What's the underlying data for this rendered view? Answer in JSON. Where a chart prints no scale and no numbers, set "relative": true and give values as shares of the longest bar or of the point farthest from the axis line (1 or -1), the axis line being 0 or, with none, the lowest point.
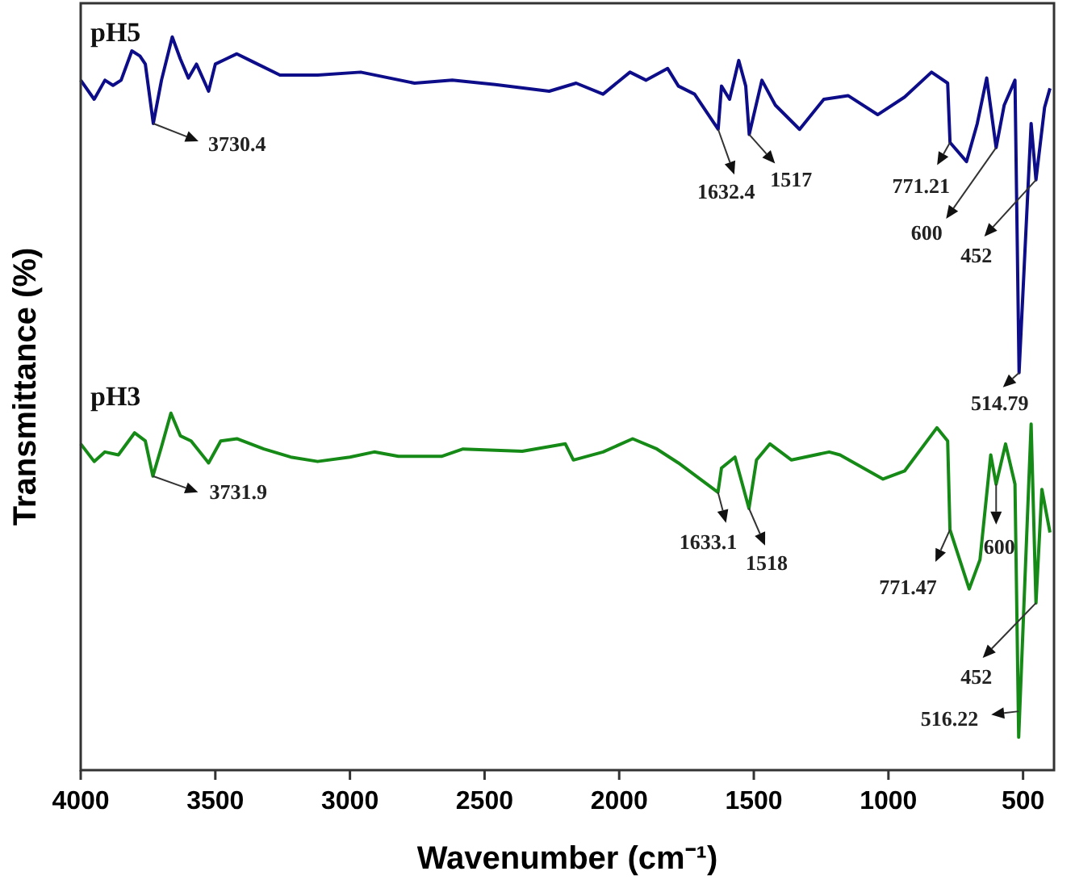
{
  "chart_data": {
    "type": "line",
    "xlabel": "Wavenumber (cm⁻¹)",
    "ylabel": "Transmittance (%)",
    "xlim": [
      4000,
      385
    ],
    "xticks": [
      4000,
      3500,
      3000,
      2500,
      2000,
      1500,
      1000,
      500
    ],
    "relative": true,
    "grid": false,
    "series": [
      {
        "name": "pH5",
        "color": "#0d0d8a",
        "x": [
          4000,
          3950,
          3910,
          3880,
          3850,
          3810,
          3780,
          3760,
          3730.4,
          3700,
          3660,
          3630,
          3600,
          3570,
          3525,
          3500,
          3460,
          3420,
          3360,
          3260,
          3120,
          2960,
          2760,
          2620,
          2460,
          2260,
          2160,
          2060,
          1960,
          1900,
          1820,
          1780,
          1720,
          1632.4,
          1620,
          1590,
          1556,
          1530,
          1517,
          1470,
          1420,
          1330,
          1240,
          1150,
          1040,
          940,
          840,
          780,
          771.21,
          710,
          670,
          635,
          600,
          570,
          530,
          514.79,
          470,
          452,
          420,
          400
        ],
        "values": [
          0.941,
          0.915,
          0.941,
          0.934,
          0.941,
          0.981,
          0.974,
          0.963,
          0.882,
          0.941,
          1,
          0.97,
          0.944,
          0.963,
          0.926,
          0.963,
          0.97,
          0.977,
          0.966,
          0.948,
          0.948,
          0.952,
          0.937,
          0.941,
          0.935,
          0.926,
          0.937,
          0.922,
          0.952,
          0.941,
          0.957,
          0.933,
          0.922,
          0.874,
          0.933,
          0.915,
          0.968,
          0.933,
          0.867,
          0.941,
          0.907,
          0.874,
          0.915,
          0.92,
          0.894,
          0.918,
          0.952,
          0.937,
          0.856,
          0.83,
          0.882,
          0.944,
          0.849,
          0.907,
          0.941,
          0.542,
          0.882,
          0.805,
          0.904,
          0.93
        ]
      },
      {
        "name": "pH3",
        "color": "#168a16",
        "x": [
          4000,
          3950,
          3910,
          3860,
          3800,
          3760,
          3731.9,
          3700,
          3665,
          3630,
          3590,
          3525,
          3480,
          3420,
          3320,
          3220,
          3120,
          3000,
          2910,
          2820,
          2660,
          2580,
          2360,
          2200,
          2170,
          2060,
          1950,
          1860,
          1780,
          1633.1,
          1620,
          1570,
          1518,
          1490,
          1440,
          1360,
          1220,
          1180,
          1020,
          940,
          820,
          780,
          771.47,
          700,
          660,
          620,
          600,
          565,
          530,
          516.22,
          470,
          452,
          430,
          400
        ],
        "values": [
          0.445,
          0.421,
          0.434,
          0.43,
          0.46,
          0.449,
          0.401,
          0.441,
          0.487,
          0.456,
          0.449,
          0.419,
          0.449,
          0.452,
          0.438,
          0.427,
          0.421,
          0.427,
          0.434,
          0.428,
          0.428,
          0.438,
          0.435,
          0.445,
          0.423,
          0.434,
          0.452,
          0.438,
          0.419,
          0.379,
          0.412,
          0.427,
          0.357,
          0.423,
          0.445,
          0.423,
          0.434,
          0.43,
          0.397,
          0.408,
          0.467,
          0.449,
          0.328,
          0.247,
          0.287,
          0.43,
          0.39,
          0.445,
          0.39,
          0.045,
          0.472,
          0.228,
          0.383,
          0.324
        ]
      }
    ],
    "annotations": [
      {
        "text": "3730.4",
        "x": 3730.4,
        "y": 0.882
      },
      {
        "text": "1632.4",
        "x": 1632.4,
        "y": 0.874
      },
      {
        "text": "1517",
        "x": 1517,
        "y": 0.867
      },
      {
        "text": "771.21",
        "x": 771.21,
        "y": 0.856
      },
      {
        "text": "600",
        "x": 600,
        "y": 0.849
      },
      {
        "text": "452",
        "x": 452,
        "y": 0.805
      },
      {
        "text": "514.79",
        "x": 514.79,
        "y": 0.542
      },
      {
        "text": "3731.9",
        "x": 3731.9,
        "y": 0.401
      },
      {
        "text": "1633.1",
        "x": 1633.1,
        "y": 0.379
      },
      {
        "text": "1518",
        "x": 1518,
        "y": 0.357
      },
      {
        "text": "771.47",
        "x": 771.47,
        "y": 0.328
      },
      {
        "text": "600",
        "x": 600,
        "y": 0.39
      },
      {
        "text": "452",
        "x": 452,
        "y": 0.228
      },
      {
        "text": "516.22",
        "x": 516.22,
        "y": 0.045
      }
    ]
  }
}
